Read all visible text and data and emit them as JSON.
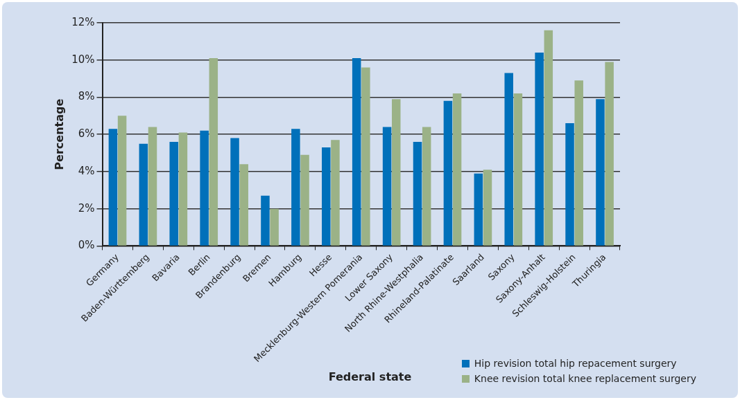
{
  "chart_data": {
    "type": "bar",
    "xlabel": "Federal state",
    "ylabel": "Percentage",
    "categories": [
      "Germany",
      "Baden-Württemberg",
      "Bavaria",
      "Berlin",
      "Brandenburg",
      "Bremen",
      "Hamburg",
      "Hesse",
      "Mecklenburg-Western Pomerania",
      "Lower Saxony",
      "North Rhine-Westphalia",
      "Rhineland-Palatinate",
      "Saarland",
      "Saxony",
      "Saxony-Anhalt",
      "Schleswig-Holstein",
      "Thuringia"
    ],
    "series": [
      {
        "name": "Hip revision total hip repacement surgery",
        "color": "#0070ba",
        "values": [
          6.3,
          5.5,
          5.6,
          6.2,
          5.8,
          2.7,
          6.3,
          5.3,
          10.1,
          6.4,
          5.6,
          7.8,
          3.9,
          9.3,
          10.4,
          6.6,
          7.9
        ]
      },
      {
        "name": "Knee revision total knee replacement surgery",
        "color": "#9bb287",
        "values": [
          7.0,
          6.4,
          6.1,
          10.1,
          4.4,
          2.0,
          4.9,
          5.7,
          9.6,
          7.9,
          6.4,
          8.2,
          4.1,
          8.2,
          11.6,
          8.9,
          9.9
        ]
      }
    ],
    "ylim": [
      0,
      12
    ],
    "yticks": [
      {
        "value": 0,
        "label": "0%"
      },
      {
        "value": 2,
        "label": "2%"
      },
      {
        "value": 4,
        "label": "4%"
      },
      {
        "value": 6,
        "label": "6%"
      },
      {
        "value": 8,
        "label": "8%"
      },
      {
        "value": 10,
        "label": "10%"
      },
      {
        "value": 12,
        "label": "12%"
      }
    ],
    "grid": "y",
    "legend": "bottom right"
  }
}
